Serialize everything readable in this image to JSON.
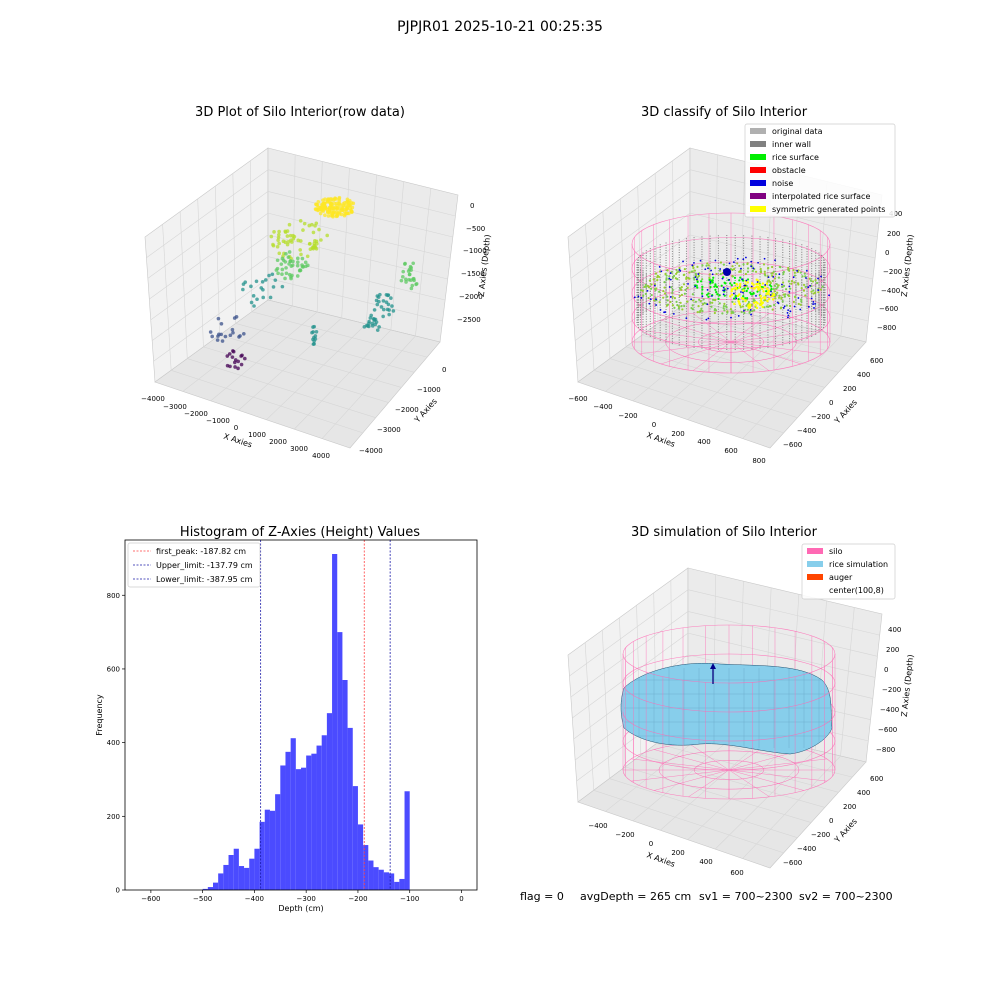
{
  "suptitle": "PJPJR01 2025-10-21 00:25:35",
  "colors": {
    "histogram_bars": "#4b4bff",
    "first_peak_line": "#ff4040",
    "limit_lines": "#1a1aa8",
    "silo_wire": "#ff69b4",
    "rice_simulation": "#87ceeb",
    "auger": "#ff4500",
    "noise": "#0000dd",
    "rice_surface": "#00ee00",
    "inner_wall": "#808080"
  },
  "panel1": {
    "title": "3D Plot of Silo Interior(row data)",
    "xlabel": "X Axies",
    "ylabel": "Y Axies",
    "zlabel": "Z Axies (Depth)",
    "xticks": [
      "−4000",
      "−3000",
      "−2000",
      "−1000",
      "0",
      "1000",
      "2000",
      "3000",
      "4000"
    ],
    "yticks": [
      "0",
      "−1000",
      "−2000",
      "−3000",
      "−4000"
    ],
    "zticks": [
      "0",
      "−500",
      "−1000",
      "−1500",
      "−2000",
      "−2500"
    ]
  },
  "panel2": {
    "title": "3D classify of Silo Interior",
    "xlabel": "X Axies",
    "ylabel": "Y Axies",
    "zlabel": "Z Axies (Depth)",
    "xticks": [
      "−600",
      "−400",
      "−200",
      "0",
      "200",
      "400",
      "600",
      "800"
    ],
    "yticks": [
      "600",
      "400",
      "200",
      "0",
      "−200",
      "−400",
      "−600"
    ],
    "zticks": [
      "400",
      "200",
      "0",
      "−200",
      "−400",
      "−600",
      "−800"
    ],
    "legend": [
      {
        "label": "original data",
        "color": "#b0b0b0"
      },
      {
        "label": "inner wall",
        "color": "#808080"
      },
      {
        "label": "rice surface",
        "color": "#00ee00"
      },
      {
        "label": "obstacle",
        "color": "#ff0000"
      },
      {
        "label": "noise",
        "color": "#0000dd"
      },
      {
        "label": "interpolated rice surface",
        "color": "#800080"
      },
      {
        "label": "symmetric generated points",
        "color": "#ffff00"
      }
    ]
  },
  "panel4": {
    "title": "3D simulation of Silo Interior",
    "xlabel": "X Axies",
    "ylabel": "Y Axies",
    "zlabel": "Z Axies (Depth)",
    "xticks": [
      "−400",
      "−200",
      "0",
      "200",
      "400",
      "600"
    ],
    "yticks": [
      "600",
      "400",
      "200",
      "0",
      "−200",
      "−400",
      "−600"
    ],
    "zticks": [
      "400",
      "200",
      "0",
      "−200",
      "−400",
      "−600",
      "−800"
    ],
    "legend": [
      {
        "label": "silo",
        "color": "#ff69b4"
      },
      {
        "label": "rice simulation",
        "color": "#87ceeb"
      },
      {
        "label": "auger",
        "color": "#ff4500"
      },
      {
        "label": "center(100,8)",
        "color": "#ffffff"
      }
    ]
  },
  "footer": {
    "flag": "flag = 0",
    "avg": "avgDepth = 265 cm",
    "sv1": "sv1 = 700~2300",
    "sv2": "sv2 = 700~2300"
  },
  "chart_data": {
    "type": "bar",
    "title": "Histogram of Z-Axies (Height) Values",
    "xlabel": "Depth (cm)",
    "ylabel": "Frequency",
    "xlim": [
      -650,
      30
    ],
    "ylim": [
      0,
      950
    ],
    "bin_start": -500,
    "bin_width": 10,
    "xticks": [
      -600,
      -500,
      -400,
      -300,
      -200,
      -100,
      0
    ],
    "xticklabels": [
      "−600",
      "−500",
      "−400",
      "−300",
      "−200",
      "−100",
      "0"
    ],
    "yticks": [
      0,
      200,
      400,
      600,
      800
    ],
    "values": [
      3,
      8,
      20,
      45,
      68,
      95,
      112,
      65,
      60,
      85,
      112,
      185,
      218,
      215,
      260,
      338,
      375,
      412,
      328,
      332,
      365,
      370,
      392,
      420,
      480,
      912,
      700,
      570,
      440,
      282,
      178,
      122,
      80,
      62,
      55,
      48,
      45,
      22,
      30,
      268
    ],
    "vlines": [
      {
        "label": "first_peak: -187.82 cm",
        "x": -187.82,
        "color": "#ff4040"
      },
      {
        "label": "Upper_limit: -137.79 cm",
        "x": -137.79,
        "color": "#1a1aa8"
      },
      {
        "label": "Lower_limit: -387.95 cm",
        "x": -387.95,
        "color": "#1a1aa8"
      }
    ]
  }
}
